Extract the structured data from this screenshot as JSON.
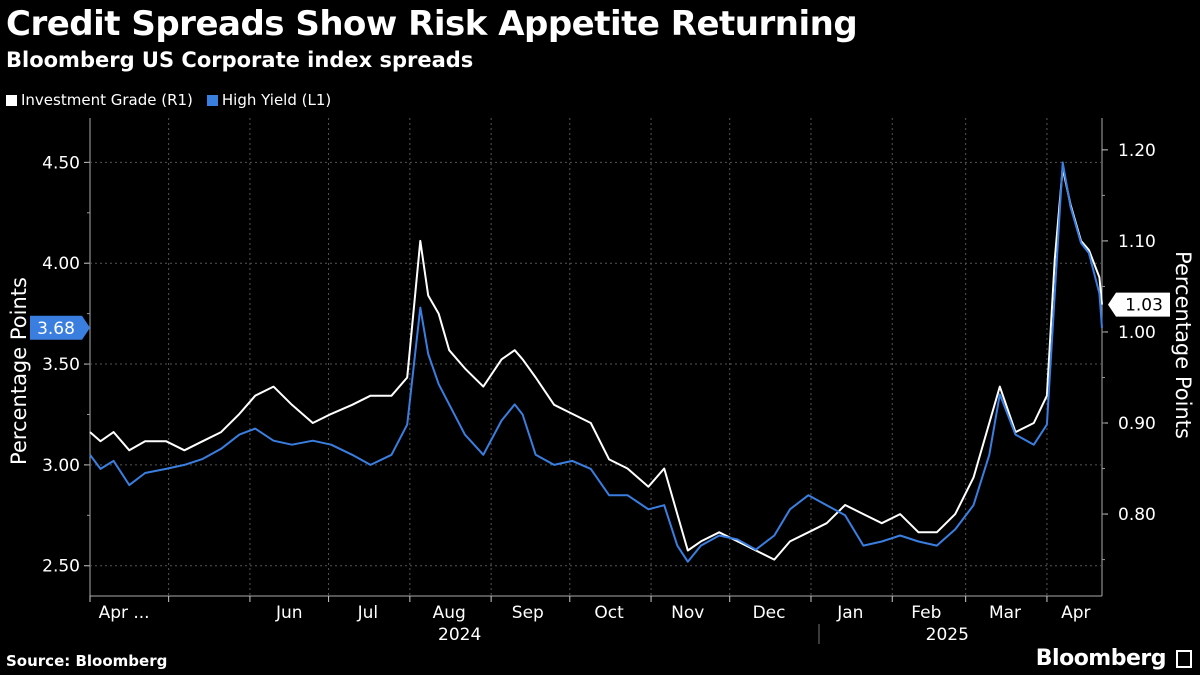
{
  "header": {
    "title": "Credit Spreads Show Risk Appetite Returning",
    "subtitle": "Bloomberg US Corporate index spreads"
  },
  "footer": {
    "source": "Source: Bloomberg",
    "brand": "Bloomberg"
  },
  "colors": {
    "background": "#000000",
    "investment_grade": "#ffffff",
    "high_yield": "#3a7ee0",
    "grid": "#555555"
  },
  "chart_data": {
    "type": "line",
    "title": "Credit Spreads Show Risk Appetite Returning",
    "subtitle": "Bloomberg US Corporate index spreads",
    "legend": [
      "Investment Grade (R1)",
      "High Yield (L1)"
    ],
    "legend_position": "top-left",
    "grid": true,
    "x_range": [
      "2024-04-01",
      "2025-04-22"
    ],
    "x_ticks": [
      "Apr ...",
      "Jun",
      "Jul",
      "Aug",
      "Sep",
      "Oct",
      "Nov",
      "Dec",
      "Jan",
      "Feb",
      "Mar",
      "Apr"
    ],
    "x_year_labels": [
      "2024",
      "2025"
    ],
    "left_axis": {
      "label": "Percentage Points",
      "ticks": [
        "2.50",
        "3.00",
        "3.50",
        "4.00",
        "4.50"
      ],
      "range": [
        2.35,
        4.72
      ],
      "last_value_label": "3.68"
    },
    "right_axis": {
      "label": "Percentage Points",
      "ticks": [
        "0.80",
        "0.90",
        "1.00",
        "1.10",
        "1.20"
      ],
      "range": [
        0.71,
        1.235
      ],
      "last_value_label": "1.03"
    },
    "series": [
      {
        "name": "Investment Grade (R1)",
        "axis": "right",
        "points": [
          [
            "2024-04-01",
            0.89
          ],
          [
            "2024-04-05",
            0.88
          ],
          [
            "2024-04-10",
            0.89
          ],
          [
            "2024-04-16",
            0.87
          ],
          [
            "2024-04-22",
            0.88
          ],
          [
            "2024-04-30",
            0.88
          ],
          [
            "2024-05-07",
            0.87
          ],
          [
            "2024-05-14",
            0.88
          ],
          [
            "2024-05-21",
            0.89
          ],
          [
            "2024-05-28",
            0.91
          ],
          [
            "2024-06-03",
            0.93
          ],
          [
            "2024-06-10",
            0.94
          ],
          [
            "2024-06-17",
            0.92
          ],
          [
            "2024-06-25",
            0.9
          ],
          [
            "2024-07-02",
            0.91
          ],
          [
            "2024-07-10",
            0.92
          ],
          [
            "2024-07-17",
            0.93
          ],
          [
            "2024-07-25",
            0.93
          ],
          [
            "2024-07-31",
            0.95
          ],
          [
            "2024-08-05",
            1.1
          ],
          [
            "2024-08-08",
            1.04
          ],
          [
            "2024-08-12",
            1.02
          ],
          [
            "2024-08-16",
            0.98
          ],
          [
            "2024-08-22",
            0.96
          ],
          [
            "2024-08-29",
            0.94
          ],
          [
            "2024-09-05",
            0.97
          ],
          [
            "2024-09-10",
            0.98
          ],
          [
            "2024-09-13",
            0.97
          ],
          [
            "2024-09-18",
            0.95
          ],
          [
            "2024-09-25",
            0.92
          ],
          [
            "2024-10-02",
            0.91
          ],
          [
            "2024-10-09",
            0.9
          ],
          [
            "2024-10-16",
            0.86
          ],
          [
            "2024-10-23",
            0.85
          ],
          [
            "2024-10-31",
            0.83
          ],
          [
            "2024-11-06",
            0.85
          ],
          [
            "2024-11-11",
            0.8
          ],
          [
            "2024-11-15",
            0.76
          ],
          [
            "2024-11-20",
            0.77
          ],
          [
            "2024-11-27",
            0.78
          ],
          [
            "2024-12-04",
            0.77
          ],
          [
            "2024-12-11",
            0.76
          ],
          [
            "2024-12-18",
            0.75
          ],
          [
            "2024-12-24",
            0.77
          ],
          [
            "2024-12-31",
            0.78
          ],
          [
            "2025-01-07",
            0.79
          ],
          [
            "2025-01-14",
            0.81
          ],
          [
            "2025-01-21",
            0.8
          ],
          [
            "2025-01-28",
            0.79
          ],
          [
            "2025-02-04",
            0.8
          ],
          [
            "2025-02-11",
            0.78
          ],
          [
            "2025-02-18",
            0.78
          ],
          [
            "2025-02-25",
            0.8
          ],
          [
            "2025-03-04",
            0.84
          ],
          [
            "2025-03-10",
            0.9
          ],
          [
            "2025-03-14",
            0.94
          ],
          [
            "2025-03-20",
            0.89
          ],
          [
            "2025-03-27",
            0.9
          ],
          [
            "2025-04-01",
            0.93
          ],
          [
            "2025-04-04",
            1.08
          ],
          [
            "2025-04-07",
            1.18
          ],
          [
            "2025-04-10",
            1.14
          ],
          [
            "2025-04-14",
            1.1
          ],
          [
            "2025-04-17",
            1.09
          ],
          [
            "2025-04-21",
            1.06
          ],
          [
            "2025-04-22",
            1.03
          ]
        ]
      },
      {
        "name": "High Yield (L1)",
        "axis": "left",
        "points": [
          [
            "2024-04-01",
            3.05
          ],
          [
            "2024-04-05",
            2.98
          ],
          [
            "2024-04-10",
            3.02
          ],
          [
            "2024-04-16",
            2.9
          ],
          [
            "2024-04-22",
            2.96
          ],
          [
            "2024-04-30",
            2.98
          ],
          [
            "2024-05-07",
            3.0
          ],
          [
            "2024-05-14",
            3.03
          ],
          [
            "2024-05-21",
            3.08
          ],
          [
            "2024-05-28",
            3.15
          ],
          [
            "2024-06-03",
            3.18
          ],
          [
            "2024-06-10",
            3.12
          ],
          [
            "2024-06-17",
            3.1
          ],
          [
            "2024-06-25",
            3.12
          ],
          [
            "2024-07-02",
            3.1
          ],
          [
            "2024-07-10",
            3.05
          ],
          [
            "2024-07-17",
            3.0
          ],
          [
            "2024-07-25",
            3.05
          ],
          [
            "2024-07-31",
            3.2
          ],
          [
            "2024-08-05",
            3.78
          ],
          [
            "2024-08-08",
            3.55
          ],
          [
            "2024-08-12",
            3.4
          ],
          [
            "2024-08-16",
            3.3
          ],
          [
            "2024-08-22",
            3.15
          ],
          [
            "2024-08-29",
            3.05
          ],
          [
            "2024-09-05",
            3.22
          ],
          [
            "2024-09-10",
            3.3
          ],
          [
            "2024-09-13",
            3.25
          ],
          [
            "2024-09-18",
            3.05
          ],
          [
            "2024-09-25",
            3.0
          ],
          [
            "2024-10-02",
            3.02
          ],
          [
            "2024-10-09",
            2.98
          ],
          [
            "2024-10-16",
            2.85
          ],
          [
            "2024-10-23",
            2.85
          ],
          [
            "2024-10-31",
            2.78
          ],
          [
            "2024-11-06",
            2.8
          ],
          [
            "2024-11-11",
            2.6
          ],
          [
            "2024-11-15",
            2.52
          ],
          [
            "2024-11-20",
            2.6
          ],
          [
            "2024-11-27",
            2.65
          ],
          [
            "2024-12-04",
            2.63
          ],
          [
            "2024-12-11",
            2.58
          ],
          [
            "2024-12-18",
            2.65
          ],
          [
            "2024-12-24",
            2.78
          ],
          [
            "2024-12-31",
            2.85
          ],
          [
            "2025-01-07",
            2.8
          ],
          [
            "2025-01-14",
            2.75
          ],
          [
            "2025-01-21",
            2.6
          ],
          [
            "2025-01-28",
            2.62
          ],
          [
            "2025-02-04",
            2.65
          ],
          [
            "2025-02-11",
            2.62
          ],
          [
            "2025-02-18",
            2.6
          ],
          [
            "2025-02-25",
            2.68
          ],
          [
            "2025-03-04",
            2.8
          ],
          [
            "2025-03-10",
            3.05
          ],
          [
            "2025-03-14",
            3.35
          ],
          [
            "2025-03-20",
            3.15
          ],
          [
            "2025-03-27",
            3.1
          ],
          [
            "2025-04-01",
            3.2
          ],
          [
            "2025-04-04",
            3.85
          ],
          [
            "2025-04-07",
            4.5
          ],
          [
            "2025-04-10",
            4.28
          ],
          [
            "2025-04-14",
            4.1
          ],
          [
            "2025-04-17",
            4.05
          ],
          [
            "2025-04-21",
            3.85
          ],
          [
            "2025-04-22",
            3.68
          ]
        ]
      }
    ]
  }
}
